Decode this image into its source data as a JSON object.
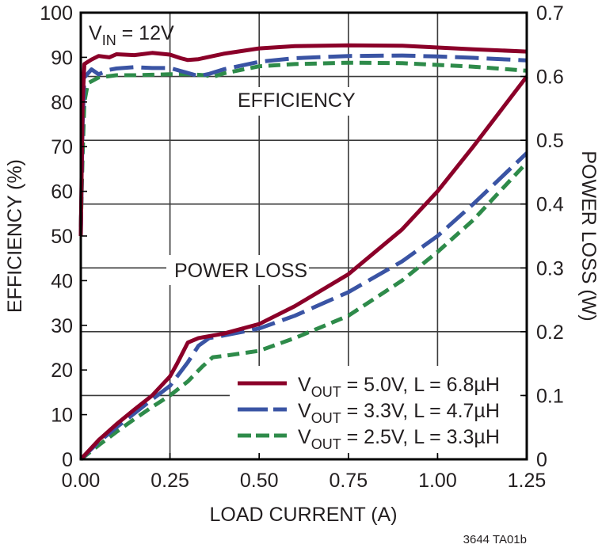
{
  "chart_data": {
    "type": "line",
    "title": "",
    "xlabel": "LOAD CURRENT (A)",
    "ylabel": "EFFICIENCY (%)",
    "y2label": "POWER LOSS (W)",
    "xlim": [
      0,
      1.25
    ],
    "ylim": [
      0,
      100
    ],
    "y2lim": [
      0,
      0.7
    ],
    "grid": true,
    "x_ticks": [
      "0.00",
      "0.25",
      "0.50",
      "0.75",
      "1.00",
      "1.25"
    ],
    "y_ticks": [
      "0",
      "10",
      "20",
      "30",
      "40",
      "50",
      "60",
      "70",
      "80",
      "90",
      "100"
    ],
    "y2_ticks": [
      "0",
      "0.1",
      "0.2",
      "0.3",
      "0.4",
      "0.5",
      "0.6",
      "0.7"
    ],
    "annotations": {
      "condition_main": "V",
      "condition_sub": "IN",
      "condition_rest": " = 12V",
      "efficiency_label": "EFFICIENCY",
      "power_loss_label": "POWER LOSS"
    },
    "legend_position": "lower-right-inside",
    "series": [
      {
        "name": "VOUT = 5.0V, L = 6.8µH",
        "legend_main": "V",
        "legend_sub": "OUT",
        "legend_rest": " = 5.0V, L = 6.8µH",
        "color": "#8b0029",
        "dash": "solid",
        "efficiency": {
          "x": [
            0.0,
            0.005,
            0.01,
            0.03,
            0.05,
            0.08,
            0.1,
            0.15,
            0.2,
            0.25,
            0.28,
            0.3,
            0.33,
            0.4,
            0.5,
            0.6,
            0.75,
            0.9,
            1.0,
            1.1,
            1.25
          ],
          "y": [
            50,
            80,
            88.5,
            89.5,
            90.3,
            90.0,
            90.7,
            90.5,
            91.0,
            90.6,
            89.8,
            89.4,
            89.6,
            90.8,
            92.0,
            92.5,
            92.7,
            92.6,
            92.2,
            91.8,
            91.3
          ]
        },
        "power_loss": {
          "x": [
            0.0,
            0.05,
            0.1,
            0.15,
            0.2,
            0.25,
            0.27,
            0.3,
            0.33,
            0.4,
            0.5,
            0.6,
            0.75,
            0.9,
            1.0,
            1.1,
            1.25
          ],
          "y": [
            0.0,
            0.03,
            0.055,
            0.078,
            0.1,
            0.13,
            0.15,
            0.183,
            0.19,
            0.197,
            0.212,
            0.24,
            0.29,
            0.36,
            0.42,
            0.49,
            0.6
          ]
        }
      },
      {
        "name": "VOUT = 3.3V, L = 4.7µH",
        "legend_main": "V",
        "legend_sub": "OUT",
        "legend_rest": " = 3.3V, L = 4.7µH",
        "color": "#3a54a4",
        "dash": "long-dash",
        "efficiency": {
          "x": [
            0.0,
            0.005,
            0.01,
            0.03,
            0.05,
            0.08,
            0.1,
            0.15,
            0.2,
            0.25,
            0.3,
            0.33,
            0.36,
            0.4,
            0.5,
            0.6,
            0.75,
            0.9,
            1.0,
            1.1,
            1.25
          ],
          "y": [
            50,
            75,
            85.5,
            87.3,
            86.2,
            87.2,
            87.5,
            87.8,
            87.6,
            87.6,
            86.5,
            85.8,
            86.3,
            87.3,
            89.0,
            89.8,
            90.3,
            90.4,
            90.2,
            89.9,
            89.3
          ]
        },
        "power_loss": {
          "x": [
            0.0,
            0.05,
            0.1,
            0.15,
            0.2,
            0.25,
            0.3,
            0.33,
            0.36,
            0.4,
            0.5,
            0.6,
            0.75,
            0.9,
            1.0,
            1.1,
            1.25
          ],
          "y": [
            0.0,
            0.027,
            0.05,
            0.072,
            0.094,
            0.115,
            0.152,
            0.178,
            0.19,
            0.194,
            0.205,
            0.225,
            0.262,
            0.31,
            0.35,
            0.4,
            0.48
          ]
        }
      },
      {
        "name": "VOUT = 2.5V, L = 3.3µH",
        "legend_main": "V",
        "legend_sub": "OUT",
        "legend_rest": " = 2.5V, L = 3.3µH",
        "color": "#2e8b4a",
        "dash": "short-dash",
        "efficiency": {
          "x": [
            0.0,
            0.005,
            0.01,
            0.02,
            0.05,
            0.1,
            0.15,
            0.2,
            0.25,
            0.3,
            0.35,
            0.37,
            0.4,
            0.5,
            0.6,
            0.75,
            0.9,
            1.0,
            1.1,
            1.25
          ],
          "y": [
            52,
            68,
            80,
            84.2,
            85.5,
            86.0,
            86.0,
            86.1,
            86.2,
            86.2,
            86.0,
            85.6,
            86.4,
            88.0,
            88.5,
            88.8,
            88.7,
            88.3,
            87.9,
            87.0
          ]
        },
        "power_loss": {
          "x": [
            0.0,
            0.05,
            0.1,
            0.15,
            0.2,
            0.25,
            0.3,
            0.34,
            0.37,
            0.4,
            0.5,
            0.6,
            0.75,
            0.9,
            1.0,
            1.1,
            1.25
          ],
          "y": [
            0.0,
            0.022,
            0.043,
            0.063,
            0.082,
            0.1,
            0.122,
            0.145,
            0.16,
            0.162,
            0.17,
            0.19,
            0.225,
            0.28,
            0.325,
            0.375,
            0.465
          ]
        }
      }
    ]
  },
  "footnote": "3644 TA01b"
}
